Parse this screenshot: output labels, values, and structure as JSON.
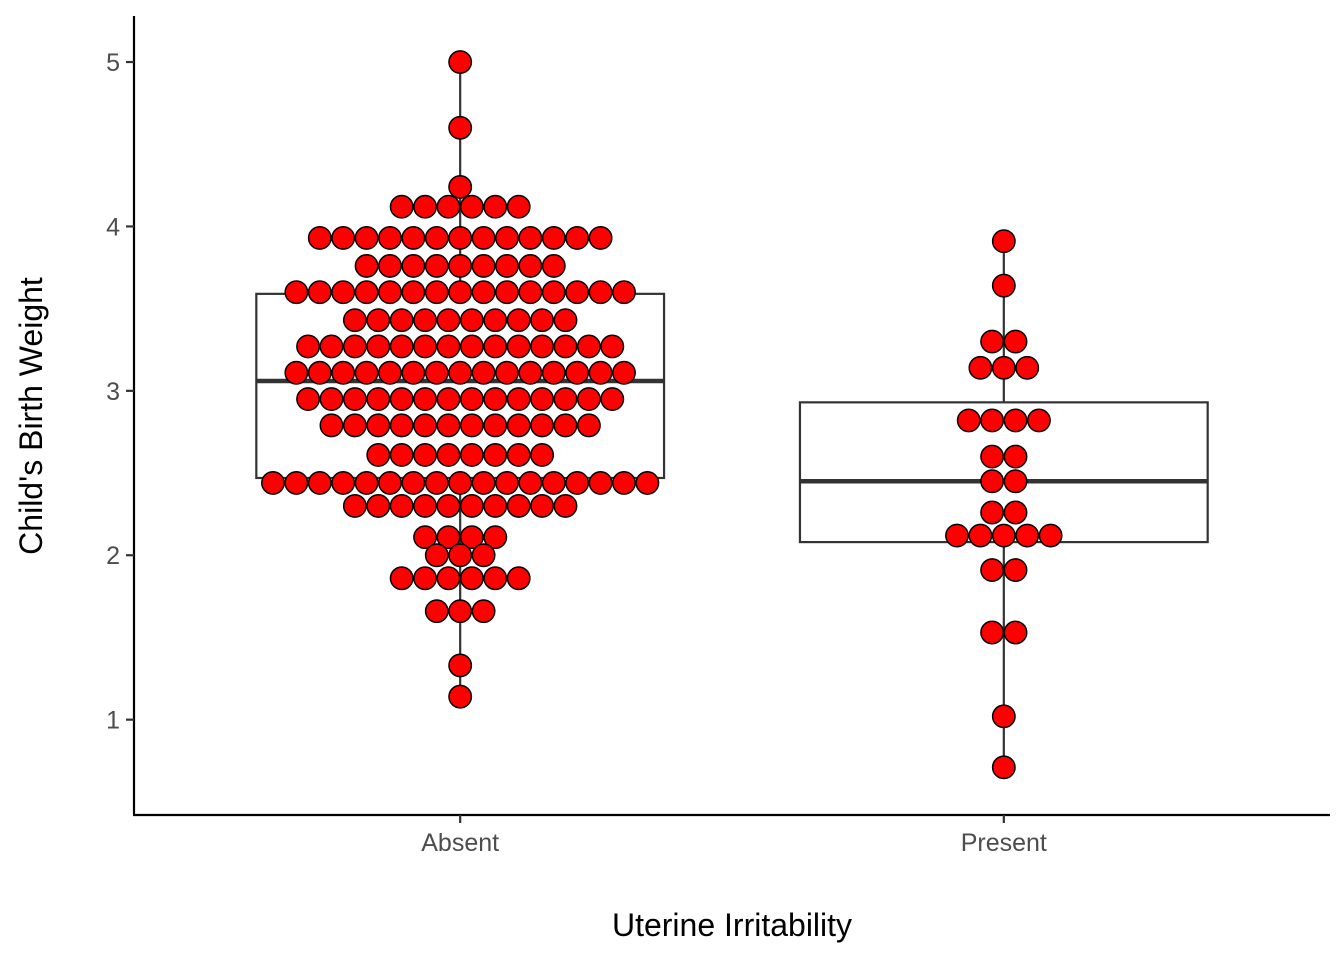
{
  "chart_data": {
    "type": "boxplot-dotplot",
    "xlabel": "Uterine Irritability",
    "ylabel": "Child's Birth Weight",
    "ylim": [
      0.42,
      5.28
    ],
    "yticks": [
      1,
      2,
      3,
      4,
      5
    ],
    "categories": [
      "Absent",
      "Present"
    ],
    "dot_color": "#ff0000",
    "dot_stroke": "#000000",
    "boxes": [
      {
        "category": "Absent",
        "lower_whisker": 1.14,
        "q1": 2.47,
        "median": 3.06,
        "q3": 3.59,
        "upper_whisker": 5.0
      },
      {
        "category": "Present",
        "lower_whisker": 0.71,
        "q1": 2.08,
        "median": 2.45,
        "q3": 2.93,
        "upper_whisker": 3.91
      }
    ],
    "dots": [
      {
        "category": "Absent",
        "bins": [
          {
            "y": 5.0,
            "count": 1
          },
          {
            "y": 4.6,
            "count": 1
          },
          {
            "y": 4.24,
            "count": 1
          },
          {
            "y": 4.12,
            "count": 6
          },
          {
            "y": 3.93,
            "count": 13
          },
          {
            "y": 3.76,
            "count": 9
          },
          {
            "y": 3.6,
            "count": 15
          },
          {
            "y": 3.43,
            "count": 10
          },
          {
            "y": 3.27,
            "count": 14
          },
          {
            "y": 3.11,
            "count": 15
          },
          {
            "y": 2.95,
            "count": 14
          },
          {
            "y": 2.79,
            "count": 12
          },
          {
            "y": 2.61,
            "count": 8
          },
          {
            "y": 2.44,
            "count": 17
          },
          {
            "y": 2.3,
            "count": 10
          },
          {
            "y": 2.11,
            "count": 4
          },
          {
            "y": 2.0,
            "count": 3
          },
          {
            "y": 1.86,
            "count": 6
          },
          {
            "y": 1.66,
            "count": 3
          },
          {
            "y": 1.33,
            "count": 1
          },
          {
            "y": 1.14,
            "count": 1
          }
        ]
      },
      {
        "category": "Present",
        "bins": [
          {
            "y": 3.91,
            "count": 1
          },
          {
            "y": 3.64,
            "count": 1
          },
          {
            "y": 3.3,
            "count": 2
          },
          {
            "y": 3.14,
            "count": 3
          },
          {
            "y": 2.82,
            "count": 4
          },
          {
            "y": 2.6,
            "count": 2
          },
          {
            "y": 2.45,
            "count": 2
          },
          {
            "y": 2.26,
            "count": 2
          },
          {
            "y": 2.12,
            "count": 5
          },
          {
            "y": 1.91,
            "count": 2
          },
          {
            "y": 1.53,
            "count": 2
          },
          {
            "y": 1.02,
            "count": 1
          },
          {
            "y": 0.71,
            "count": 1
          }
        ]
      }
    ]
  }
}
